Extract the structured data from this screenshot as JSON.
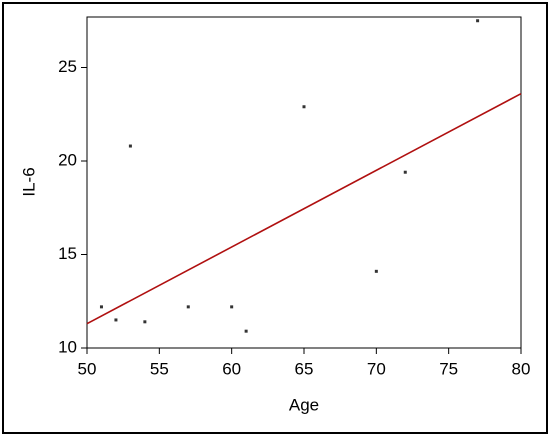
{
  "chart_data": {
    "type": "scatter",
    "x_label": "Age",
    "y_label": "IL-6",
    "x": [
      51,
      52,
      53,
      54,
      57,
      60,
      61,
      65,
      70,
      72,
      77
    ],
    "values": [
      12.2,
      11.5,
      20.8,
      11.4,
      12.2,
      12.2,
      10.9,
      22.9,
      14.1,
      19.4,
      27.5
    ],
    "color": "#333333",
    "fit_line": {
      "x": [
        50,
        80
      ],
      "values": [
        11.3,
        23.6
      ],
      "color": "#b01010"
    },
    "xlim": [
      50,
      80
    ],
    "xticks": [
      50,
      55,
      60,
      65,
      70,
      75,
      80
    ],
    "ylim": [
      10,
      27.7
    ],
    "yticks": [
      10,
      15,
      20,
      25
    ],
    "grid": false
  }
}
